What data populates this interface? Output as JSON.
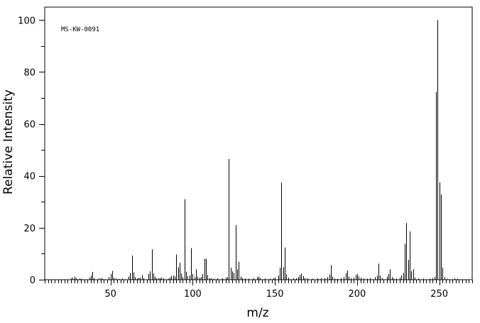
{
  "chart_data": {
    "type": "bar",
    "title": "",
    "annotation": "MS-KW-0091",
    "xlabel": "m/z",
    "ylabel": "Relative Intensity",
    "xlim": [
      10,
      270
    ],
    "ylim": [
      0,
      105
    ],
    "x_ticks": [
      50,
      100,
      150,
      200,
      250
    ],
    "y_ticks": [
      0,
      20,
      40,
      60,
      80,
      100
    ],
    "x_minor_step": 2,
    "y_minor_step": 10,
    "grid": false,
    "legend": "none",
    "colors": {
      "bars": "#000000",
      "axes": "#000000"
    },
    "series": [
      {
        "peaks": [
          [
            26,
            0.5
          ],
          [
            27,
            0.8
          ],
          [
            28,
            1.2
          ],
          [
            29,
            0.6
          ],
          [
            31,
            0.4
          ],
          [
            32,
            0.3
          ],
          [
            37,
            0.8
          ],
          [
            38,
            1.6
          ],
          [
            39,
            3.0
          ],
          [
            40,
            0.6
          ],
          [
            43,
            0.5
          ],
          [
            44,
            0.6
          ],
          [
            45,
            0.4
          ],
          [
            49,
            1.0
          ],
          [
            50,
            2.2
          ],
          [
            51,
            3.4
          ],
          [
            52,
            0.8
          ],
          [
            53,
            0.5
          ],
          [
            55,
            0.3
          ],
          [
            57,
            0.5
          ],
          [
            61,
            1.2
          ],
          [
            62,
            2.6
          ],
          [
            63,
            9.3
          ],
          [
            64,
            2.8
          ],
          [
            65,
            1.0
          ],
          [
            66,
            0.5
          ],
          [
            67,
            0.6
          ],
          [
            68,
            0.8
          ],
          [
            69,
            1.8
          ],
          [
            70,
            0.6
          ],
          [
            73,
            2.2
          ],
          [
            74,
            3.2
          ],
          [
            75,
            11.7
          ],
          [
            76,
            2.4
          ],
          [
            77,
            1.2
          ],
          [
            78,
            0.6
          ],
          [
            79,
            0.5
          ],
          [
            80,
            0.6
          ],
          [
            81,
            0.8
          ],
          [
            82,
            0.5
          ],
          [
            85,
            0.4
          ],
          [
            86,
            0.8
          ],
          [
            87,
            1.4
          ],
          [
            88,
            1.6
          ],
          [
            89,
            1.2
          ],
          [
            90,
            9.7
          ],
          [
            91,
            4.8
          ],
          [
            92,
            6.5
          ],
          [
            93,
            2.4
          ],
          [
            94,
            1.0
          ],
          [
            95,
            31.0
          ],
          [
            96,
            3.1
          ],
          [
            97,
            1.4
          ],
          [
            98,
            1.6
          ],
          [
            99,
            12.2
          ],
          [
            100,
            2.2
          ],
          [
            101,
            1.0
          ],
          [
            102,
            4.0
          ],
          [
            103,
            1.2
          ],
          [
            104,
            0.8
          ],
          [
            105,
            1.0
          ],
          [
            106,
            2.2
          ],
          [
            107,
            8.1
          ],
          [
            108,
            8.0
          ],
          [
            109,
            1.8
          ],
          [
            110,
            0.6
          ],
          [
            111,
            0.5
          ],
          [
            113,
            0.4
          ],
          [
            115,
            0.5
          ],
          [
            118,
            0.6
          ],
          [
            120,
            0.8
          ],
          [
            121,
            1.0
          ],
          [
            122,
            46.5
          ],
          [
            123,
            4.6
          ],
          [
            124,
            3.2
          ],
          [
            125,
            2.6
          ],
          [
            126,
            21.0
          ],
          [
            127,
            4.0
          ],
          [
            128,
            6.9
          ],
          [
            129,
            1.2
          ],
          [
            130,
            0.6
          ],
          [
            132,
            0.5
          ],
          [
            134,
            0.4
          ],
          [
            137,
            0.6
          ],
          [
            139,
            1.0
          ],
          [
            140,
            1.2
          ],
          [
            141,
            0.6
          ],
          [
            144,
            0.5
          ],
          [
            147,
            0.4
          ],
          [
            149,
            0.6
          ],
          [
            150,
            0.8
          ],
          [
            152,
            1.6
          ],
          [
            153,
            4.6
          ],
          [
            154,
            37.4
          ],
          [
            155,
            4.8
          ],
          [
            156,
            12.4
          ],
          [
            157,
            2.0
          ],
          [
            158,
            0.8
          ],
          [
            161,
            0.5
          ],
          [
            163,
            0.6
          ],
          [
            164,
            1.0
          ],
          [
            165,
            1.8
          ],
          [
            166,
            2.4
          ],
          [
            167,
            1.4
          ],
          [
            168,
            0.6
          ],
          [
            170,
            0.5
          ],
          [
            173,
            0.4
          ],
          [
            176,
            0.5
          ],
          [
            178,
            0.6
          ],
          [
            180,
            0.6
          ],
          [
            182,
            1.0
          ],
          [
            183,
            2.0
          ],
          [
            184,
            5.6
          ],
          [
            185,
            1.2
          ],
          [
            186,
            0.4
          ],
          [
            188,
            0.3
          ],
          [
            190,
            0.6
          ],
          [
            192,
            1.0
          ],
          [
            193,
            2.6
          ],
          [
            194,
            3.6
          ],
          [
            195,
            1.2
          ],
          [
            196,
            0.6
          ],
          [
            198,
            0.8
          ],
          [
            199,
            1.8
          ],
          [
            200,
            2.2
          ],
          [
            201,
            1.2
          ],
          [
            202,
            0.8
          ],
          [
            204,
            0.5
          ],
          [
            206,
            0.4
          ],
          [
            208,
            0.6
          ],
          [
            211,
            1.0
          ],
          [
            212,
            1.6
          ],
          [
            213,
            6.2
          ],
          [
            214,
            1.6
          ],
          [
            215,
            0.6
          ],
          [
            218,
            1.2
          ],
          [
            219,
            2.2
          ],
          [
            220,
            4.0
          ],
          [
            221,
            1.0
          ],
          [
            222,
            0.5
          ],
          [
            224,
            0.4
          ],
          [
            226,
            0.8
          ],
          [
            227,
            1.6
          ],
          [
            228,
            2.6
          ],
          [
            229,
            13.8
          ],
          [
            230,
            21.8
          ],
          [
            231,
            7.6
          ],
          [
            232,
            18.6
          ],
          [
            233,
            3.2
          ],
          [
            234,
            4.0
          ],
          [
            235,
            0.8
          ],
          [
            237,
            0.5
          ],
          [
            240,
            0.4
          ],
          [
            244,
            0.4
          ],
          [
            246,
            0.6
          ],
          [
            247,
            1.0
          ],
          [
            248,
            72.3
          ],
          [
            249,
            100.0
          ],
          [
            250,
            37.5
          ],
          [
            251,
            32.8
          ],
          [
            252,
            4.6
          ],
          [
            253,
            1.0
          ],
          [
            255,
            0.4
          ],
          [
            259,
            0.5
          ],
          [
            261,
            0.4
          ]
        ]
      }
    ]
  }
}
